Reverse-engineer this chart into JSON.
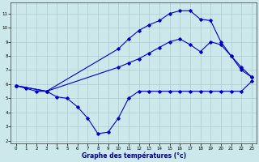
{
  "xlabel": "Graphe des températures (°c)",
  "background_color": "#cce8ea",
  "grid_color": "#aacccc",
  "line_color": "#0000cc",
  "xlim": [
    -0.5,
    23.5
  ],
  "ylim": [
    1.8,
    11.8
  ],
  "yticks": [
    2,
    3,
    4,
    5,
    6,
    7,
    8,
    9,
    10,
    11
  ],
  "xticks": [
    0,
    1,
    2,
    3,
    4,
    5,
    6,
    7,
    8,
    9,
    10,
    11,
    12,
    13,
    14,
    15,
    16,
    17,
    18,
    19,
    20,
    21,
    22,
    23
  ],
  "lineA_x": [
    0,
    1,
    2,
    3,
    4,
    5,
    6,
    7,
    8,
    9,
    10,
    11,
    12,
    13,
    14,
    15,
    16,
    17,
    18,
    19,
    20,
    21,
    22,
    23
  ],
  "lineA_y": [
    5.9,
    5.7,
    5.5,
    5.5,
    5.1,
    5.0,
    4.4,
    3.6,
    2.5,
    2.6,
    3.6,
    5.0,
    5.5,
    5.5,
    5.5,
    5.5,
    5.5,
    5.5,
    5.5,
    5.5,
    5.5,
    5.5,
    5.5,
    6.2
  ],
  "lineB_x": [
    0,
    3,
    10,
    11,
    12,
    13,
    14,
    15,
    16,
    17,
    18,
    19,
    20,
    21,
    22,
    23
  ],
  "lineB_y": [
    5.9,
    5.5,
    7.2,
    7.5,
    7.8,
    8.2,
    8.6,
    9.0,
    9.2,
    8.8,
    8.3,
    9.0,
    8.8,
    8.0,
    7.0,
    6.5
  ],
  "lineC_x": [
    0,
    3,
    10,
    11,
    12,
    13,
    14,
    15,
    16,
    17,
    18,
    19,
    20,
    21,
    22,
    23
  ],
  "lineC_y": [
    5.9,
    5.5,
    8.5,
    9.2,
    9.8,
    10.2,
    10.5,
    11.0,
    11.2,
    11.2,
    10.6,
    10.5,
    9.0,
    8.0,
    7.2,
    6.5
  ]
}
